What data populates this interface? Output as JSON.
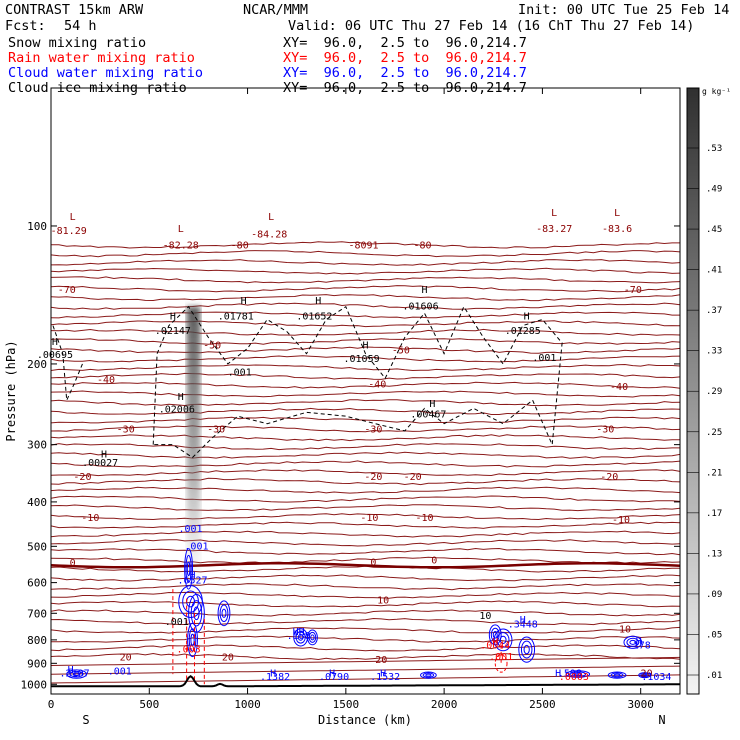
{
  "header": {
    "model": "CONTRAST 15km ARW",
    "fcst_label": "Fcst:",
    "fcst_value": "54 h",
    "center": "NCAR/MMM",
    "init": "Init: 00 UTC Tue 25 Feb 14",
    "valid": "Valid: 06 UTC Thu 27 Feb 14 (16 ChT Thu 27 Feb 14)",
    "fields": [
      {
        "name": "Snow mixing ratio",
        "xy": "XY=  96.0,  2.5 to  96.0,214.7",
        "color": "#000000"
      },
      {
        "name": "Rain water mixing ratio",
        "xy": "XY=  96.0,  2.5 to  96.0,214.7",
        "color": "#ff0000"
      },
      {
        "name": "Cloud water mixing ratio",
        "xy": "XY=  96.0,  2.5 to  96.0,214.7",
        "color": "#0000ff"
      },
      {
        "name": "Cloud ice mixing ratio",
        "xy": "XY=  96.0,  2.5 to  96.0,214.7",
        "color": "#000000"
      }
    ]
  },
  "chart_data": {
    "type": "contour",
    "xlabel": "Distance (km)",
    "ylabel": "Pressure (hPa)",
    "xlim": [
      0,
      3200
    ],
    "ylim": [
      1050,
      50
    ],
    "y_scale": "log",
    "x_ticks": [
      0,
      500,
      1000,
      1500,
      2000,
      2500,
      3000
    ],
    "y_ticks": [
      100,
      200,
      300,
      400,
      500,
      600,
      700,
      800,
      900,
      1000
    ],
    "x_end_labels": [
      "S",
      "N"
    ],
    "temperature_contours": [
      {
        "label": "-80",
        "p": 128
      },
      {
        "label": "-70",
        "p": 152
      },
      {
        "label": "-50",
        "p": 193
      },
      {
        "label": "-40",
        "p": 230
      },
      {
        "label": "-30",
        "p": 290
      },
      {
        "label": "-20",
        "p": 358
      },
      {
        "label": "-10",
        "p": 440
      },
      {
        "label": "0",
        "p": 550
      },
      {
        "label": "10",
        "p": 680
      },
      {
        "label": "20",
        "p": 880
      }
    ],
    "colorbar": {
      "unit": "g kg⁻¹",
      "labels": [
        ".53",
        ".49",
        ".45",
        ".41",
        ".37",
        ".33",
        ".29",
        ".25",
        ".21",
        ".17",
        ".13",
        ".09",
        ".05",
        ".01"
      ]
    },
    "annotations": [
      {
        "text": "L",
        "x": 110,
        "p": 97,
        "color": "#8b0000"
      },
      {
        "text": "-81.29",
        "x": 90,
        "p": 104,
        "color": "#8b0000"
      },
      {
        "text": "L",
        "x": 660,
        "p": 103,
        "color": "#8b0000"
      },
      {
        "text": "-82.28",
        "x": 660,
        "p": 112,
        "color": "#8b0000"
      },
      {
        "text": "-80",
        "x": 960,
        "p": 112,
        "color": "#8b0000"
      },
      {
        "text": "L",
        "x": 1120,
        "p": 97,
        "color": "#8b0000"
      },
      {
        "text": "-84.28",
        "x": 1110,
        "p": 106,
        "color": "#8b0000"
      },
      {
        "text": "-8091",
        "x": 1590,
        "p": 112,
        "color": "#8b0000"
      },
      {
        "text": "-80",
        "x": 1890,
        "p": 112,
        "color": "#8b0000"
      },
      {
        "text": "L",
        "x": 2560,
        "p": 95,
        "color": "#8b0000"
      },
      {
        "text": "-83.27",
        "x": 2560,
        "p": 103,
        "color": "#8b0000"
      },
      {
        "text": "L",
        "x": 2880,
        "p": 95,
        "color": "#8b0000"
      },
      {
        "text": "-83.6",
        "x": 2880,
        "p": 103,
        "color": "#8b0000"
      },
      {
        "text": "-70",
        "x": 2960,
        "p": 140,
        "color": "#8b0000"
      },
      {
        "text": "-70",
        "x": 80,
        "p": 140,
        "color": "#8b0000"
      },
      {
        "text": "H",
        "x": 620,
        "p": 160,
        "color": "#000000"
      },
      {
        "text": ".02147",
        "x": 620,
        "p": 172,
        "color": "#000000"
      },
      {
        "text": "H",
        "x": 980,
        "p": 148,
        "color": "#000000"
      },
      {
        "text": ".01781",
        "x": 940,
        "p": 160,
        "color": "#000000"
      },
      {
        "text": "H",
        "x": 1360,
        "p": 148,
        "color": "#000000"
      },
      {
        "text": ".01652",
        "x": 1340,
        "p": 160,
        "color": "#000000"
      },
      {
        "text": "H",
        "x": 1900,
        "p": 140,
        "color": "#000000"
      },
      {
        "text": ".01606",
        "x": 1880,
        "p": 152,
        "color": "#000000"
      },
      {
        "text": "H",
        "x": 2420,
        "p": 160,
        "color": "#000000"
      },
      {
        "text": ".01285",
        "x": 2400,
        "p": 172,
        "color": "#000000"
      },
      {
        "text": "-50",
        "x": 820,
        "p": 185,
        "color": "#8b0000"
      },
      {
        "text": "-50",
        "x": 1780,
        "p": 190,
        "color": "#8b0000"
      },
      {
        "text": "H",
        "x": 20,
        "p": 182,
        "color": "#000000"
      },
      {
        "text": ".00695",
        "x": 20,
        "p": 194,
        "color": "#000000"
      },
      {
        "text": "H",
        "x": 1600,
        "p": 185,
        "color": "#000000"
      },
      {
        "text": ".01059",
        "x": 1580,
        "p": 198,
        "color": "#000000"
      },
      {
        "text": ".001",
        "x": 2510,
        "p": 197,
        "color": "#000000"
      },
      {
        "text": ".001",
        "x": 960,
        "p": 212,
        "color": "#000000"
      },
      {
        "text": "-40",
        "x": 280,
        "p": 220,
        "color": "#8b0000"
      },
      {
        "text": "-40",
        "x": 1660,
        "p": 225,
        "color": "#8b0000"
      },
      {
        "text": "-40",
        "x": 2890,
        "p": 228,
        "color": "#8b0000"
      },
      {
        "text": "H",
        "x": 660,
        "p": 240,
        "color": "#000000"
      },
      {
        "text": ".02006",
        "x": 640,
        "p": 255,
        "color": "#000000"
      },
      {
        "text": "H",
        "x": 1940,
        "p": 248,
        "color": "#000000"
      },
      {
        "text": ".00467",
        "x": 1920,
        "p": 262,
        "color": "#000000"
      },
      {
        "text": "-30",
        "x": 380,
        "p": 282,
        "color": "#8b0000"
      },
      {
        "text": "-30",
        "x": 840,
        "p": 282,
        "color": "#8b0000"
      },
      {
        "text": "-30",
        "x": 1640,
        "p": 282,
        "color": "#8b0000"
      },
      {
        "text": "-30",
        "x": 2820,
        "p": 282,
        "color": "#8b0000"
      },
      {
        "text": "H",
        "x": 270,
        "p": 320,
        "color": "#000000"
      },
      {
        "text": ".00027",
        "x": 250,
        "p": 334,
        "color": "#000000"
      },
      {
        "text": "-20",
        "x": 160,
        "p": 358,
        "color": "#8b0000"
      },
      {
        "text": "-20",
        "x": 1640,
        "p": 358,
        "color": "#8b0000"
      },
      {
        "text": "-20",
        "x": 1840,
        "p": 358,
        "color": "#8b0000"
      },
      {
        "text": "-20",
        "x": 2840,
        "p": 358,
        "color": "#8b0000"
      },
      {
        "text": "-10",
        "x": 200,
        "p": 440,
        "color": "#8b0000"
      },
      {
        "text": "-10",
        "x": 1620,
        "p": 440,
        "color": "#8b0000"
      },
      {
        "text": "-10",
        "x": 1900,
        "p": 440,
        "color": "#8b0000"
      },
      {
        "text": "-10",
        "x": 2900,
        "p": 445,
        "color": "#8b0000"
      },
      {
        "text": ".001",
        "x": 710,
        "p": 465,
        "color": "#0000ff"
      },
      {
        "text": ".001",
        "x": 740,
        "p": 508,
        "color": "#0000ff"
      },
      {
        "text": "0",
        "x": 110,
        "p": 552,
        "color": "#8b0000"
      },
      {
        "text": "0",
        "x": 1640,
        "p": 550,
        "color": "#8b0000"
      },
      {
        "text": "0",
        "x": 1950,
        "p": 545,
        "color": "#8b0000"
      },
      {
        "text": "H",
        "x": 720,
        "p": 588,
        "color": "#0000ff"
      },
      {
        "text": ".6527",
        "x": 720,
        "p": 602,
        "color": "#0000ff"
      },
      {
        "text": "10",
        "x": 1690,
        "p": 667,
        "color": "#8b0000"
      },
      {
        "text": "10",
        "x": 2210,
        "p": 720,
        "color": "#000000"
      },
      {
        "text": "H",
        "x": 2400,
        "p": 735,
        "color": "#0000ff"
      },
      {
        "text": ".3448",
        "x": 2400,
        "p": 752,
        "color": "#0000ff"
      },
      {
        "text": "10",
        "x": 2920,
        "p": 770,
        "color": "#8b0000"
      },
      {
        "text": ".001",
        "x": 640,
        "p": 742,
        "color": "#000000"
      },
      {
        "text": "HH",
        "x": 1260,
        "p": 780,
        "color": "#0000ff"
      },
      {
        "text": ".188",
        "x": 1260,
        "p": 797,
        "color": "#0000ff"
      },
      {
        "text": "H",
        "x": 2260,
        "p": 820,
        "color": "#ff0000"
      },
      {
        "text": ".0044",
        "x": 2260,
        "p": 836,
        "color": "#ff0000"
      },
      {
        "text": "H",
        "x": 2990,
        "p": 818,
        "color": "#0000ff"
      },
      {
        "text": ".178",
        "x": 2990,
        "p": 835,
        "color": "#0000ff"
      },
      {
        "text": ".003",
        "x": 700,
        "p": 852,
        "color": "#ff0000"
      },
      {
        "text": "20",
        "x": 380,
        "p": 888,
        "color": "#8b0000"
      },
      {
        "text": "20",
        "x": 900,
        "p": 888,
        "color": "#8b0000"
      },
      {
        "text": "20",
        "x": 1680,
        "p": 898,
        "color": "#8b0000"
      },
      {
        "text": ".001",
        "x": 2290,
        "p": 885,
        "color": "#ff0000"
      },
      {
        "text": "H",
        "x": 100,
        "p": 945,
        "color": "#0000ff"
      },
      {
        "text": ".2107",
        "x": 120,
        "p": 962,
        "color": "#0000ff"
      },
      {
        "text": ".001",
        "x": 350,
        "p": 952,
        "color": "#0000ff"
      },
      {
        "text": "H",
        "x": 1130,
        "p": 962,
        "color": "#0000ff"
      },
      {
        "text": ".1382",
        "x": 1140,
        "p": 978,
        "color": "#0000ff"
      },
      {
        "text": "H",
        "x": 1430,
        "p": 962,
        "color": "#0000ff"
      },
      {
        "text": ".0790",
        "x": 1440,
        "p": 978,
        "color": "#0000ff"
      },
      {
        "text": "H",
        "x": 1690,
        "p": 962,
        "color": "#0000ff"
      },
      {
        "text": ".1532",
        "x": 1700,
        "p": 978,
        "color": "#0000ff"
      },
      {
        "text": "H",
        "x": 2580,
        "p": 962,
        "color": "#0000ff"
      },
      {
        "text": ".598",
        "x": 2640,
        "p": 962,
        "color": "#0000ff"
      },
      {
        "text": ".0003",
        "x": 2660,
        "p": 978,
        "color": "#ff0000"
      },
      {
        "text": "20",
        "x": 3030,
        "p": 962,
        "color": "#8b0000"
      },
      {
        "text": ".1034",
        "x": 3080,
        "p": 978,
        "color": "#0000ff"
      }
    ]
  }
}
